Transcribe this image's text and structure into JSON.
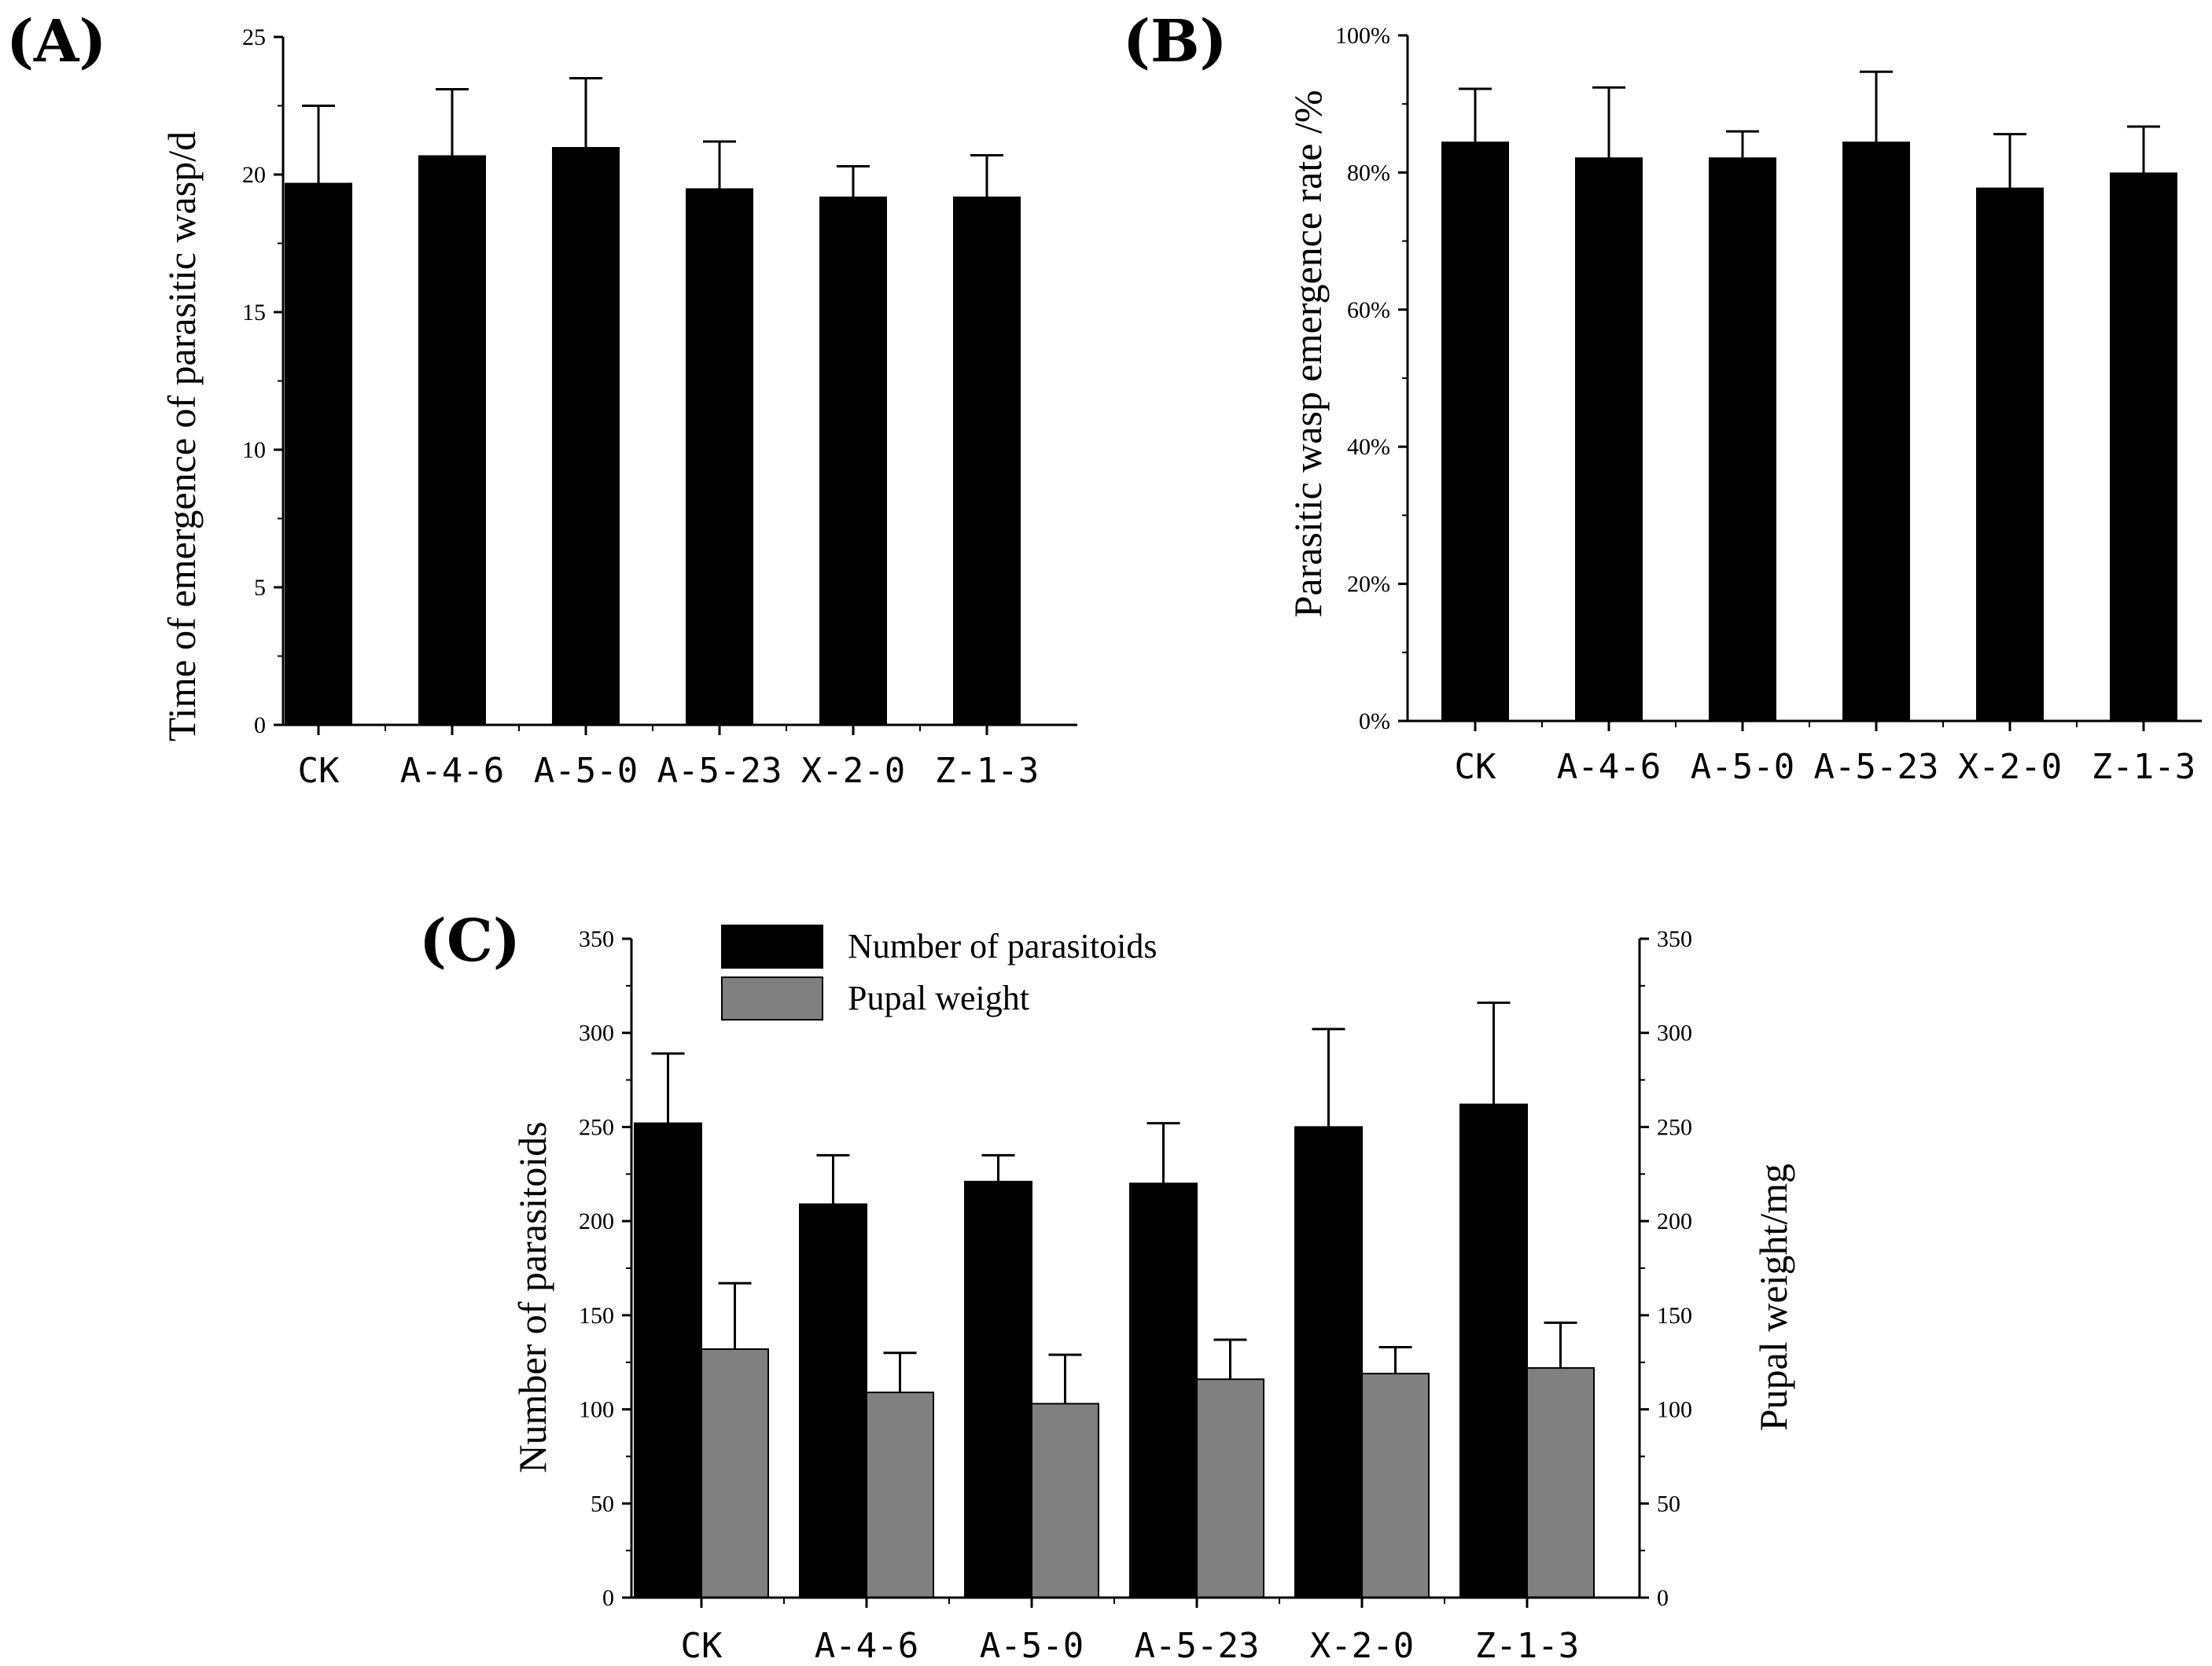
{
  "colors": {
    "primary_bar": "#000000",
    "secondary_bar": "#808080",
    "axis": "#000000"
  },
  "chart_data": [
    {
      "panel": "(A)",
      "type": "bar",
      "categories": [
        "CK",
        "A-4-6",
        "A-5-0",
        "A-5-23",
        "X-2-0",
        "Z-1-3"
      ],
      "values": [
        19.7,
        20.7,
        21.0,
        19.5,
        19.2,
        19.2
      ],
      "errors": [
        2.8,
        2.4,
        2.5,
        1.7,
        1.1,
        1.5
      ],
      "ylabel": "Time of emergence of parasitic wasp/d",
      "ylim": [
        0,
        25
      ],
      "yticks": [
        0,
        5,
        10,
        15,
        20,
        25
      ],
      "ytick_labels": [
        "0",
        "5",
        "10",
        "15",
        "20",
        "25"
      ]
    },
    {
      "panel": "(B)",
      "type": "bar",
      "categories": [
        "CK",
        "A-4-6",
        "A-5-0",
        "A-5-23",
        "X-2-0",
        "Z-1-3"
      ],
      "values": [
        84.5,
        82.2,
        82.2,
        84.5,
        77.8,
        80.0
      ],
      "errors": [
        7.7,
        10.2,
        3.8,
        10.2,
        7.8,
        6.7
      ],
      "ylabel": "Parasitic wasp emergence rate /%",
      "ylim": [
        0,
        100
      ],
      "yticks": [
        0,
        20,
        40,
        60,
        80,
        100
      ],
      "ytick_labels": [
        "0%",
        "20%",
        "40%",
        "60%",
        "80%",
        "100%"
      ]
    },
    {
      "panel": "(C)",
      "type": "bar",
      "categories": [
        "CK",
        "A-4-6",
        "A-5-0",
        "A-5-23",
        "X-2-0",
        "Z-1-3"
      ],
      "series": [
        {
          "name": "Number of parasitoids",
          "axis": "left",
          "values": [
            252,
            209,
            221,
            220,
            250,
            262
          ],
          "errors": [
            37,
            26,
            14,
            32,
            52,
            54
          ]
        },
        {
          "name": "Pupal weight",
          "axis": "right",
          "values": [
            132,
            109,
            103,
            116,
            119,
            122
          ],
          "errors": [
            35,
            21,
            26,
            21,
            14,
            24
          ]
        }
      ],
      "ylabel": "Number of parasitoids",
      "ylabel_right": "Pupal weight/mg",
      "ylim": [
        0,
        350
      ],
      "ylim_right": [
        0,
        350
      ],
      "yticks": [
        0,
        50,
        100,
        150,
        200,
        250,
        300,
        350
      ],
      "ytick_labels": [
        "0",
        "50",
        "100",
        "150",
        "200",
        "250",
        "300",
        "350"
      ],
      "legend_position": "top-left"
    }
  ]
}
